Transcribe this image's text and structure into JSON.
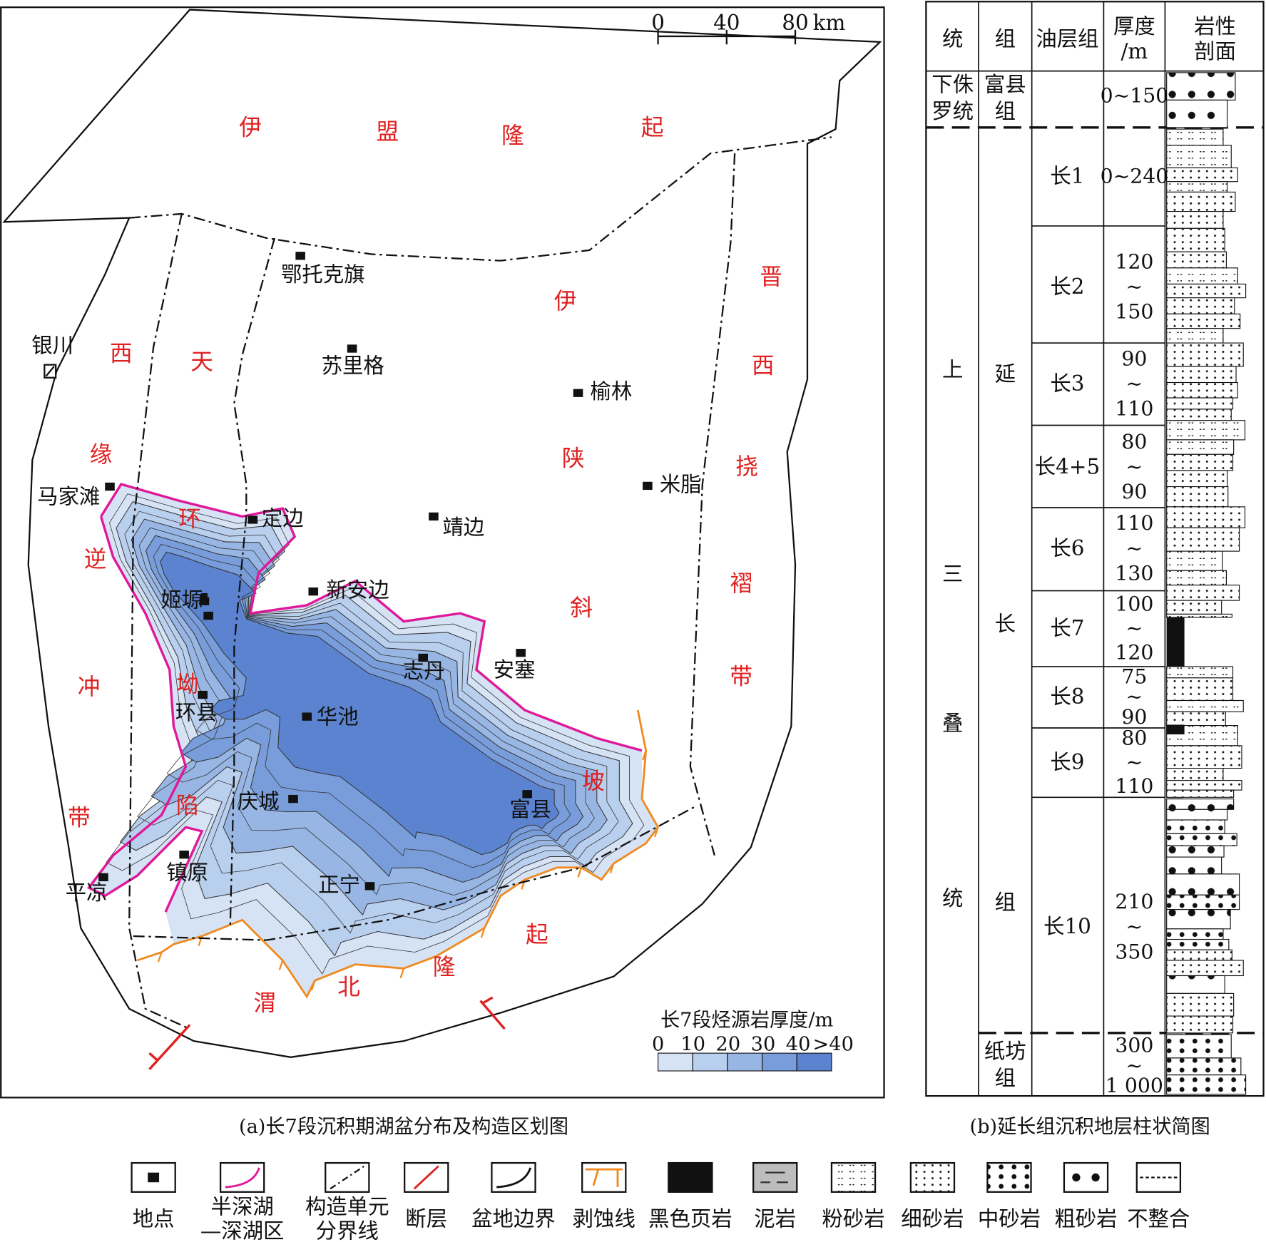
{
  "map": {
    "caption": "(a)长7段沉积期湖盆分布及构造区划图",
    "scale": {
      "labels": [
        "0",
        "40",
        "80"
      ],
      "unit": "km"
    },
    "regions": [
      {
        "chars": [
          "伊",
          "盟",
          "隆",
          "起"
        ]
      },
      {
        "chars": [
          "西",
          "缘",
          "逆",
          "冲",
          "带"
        ]
      },
      {
        "chars": [
          "天",
          "环",
          "坳",
          "陷"
        ]
      },
      {
        "chars": [
          "伊",
          "陕",
          "斜",
          "坡"
        ]
      },
      {
        "chars": [
          "晋",
          "西",
          "挠",
          "褶",
          "带"
        ]
      },
      {
        "chars": [
          "渭",
          "北",
          "隆",
          "起"
        ]
      }
    ],
    "places": [
      {
        "name": "银川"
      },
      {
        "name": "鄂托克旗"
      },
      {
        "name": "苏里格"
      },
      {
        "name": "榆林"
      },
      {
        "name": "米脂"
      },
      {
        "name": "马家滩"
      },
      {
        "name": "定边"
      },
      {
        "name": "靖边"
      },
      {
        "name": "新安边"
      },
      {
        "name": "姬塬"
      },
      {
        "name": "安塞"
      },
      {
        "name": "志丹"
      },
      {
        "name": "环县"
      },
      {
        "name": "华池"
      },
      {
        "name": "庆城"
      },
      {
        "name": "富县"
      },
      {
        "name": "镇原"
      },
      {
        "name": "平凉"
      },
      {
        "name": "正宁"
      }
    ],
    "thickness_legend": {
      "title": "长7段烃源岩厚度/m",
      "ticks": [
        "0",
        "10",
        "20",
        "30",
        "40",
        ">40"
      ]
    }
  },
  "column": {
    "caption": "(b)延长组沉积地层柱状简图",
    "headers": [
      [
        "统"
      ],
      [
        "组"
      ],
      [
        "油层组"
      ],
      [
        "厚度",
        "/m"
      ],
      [
        "岩性",
        "剖面"
      ]
    ],
    "series": [
      {
        "name": [
          "下侏",
          "罗统"
        ]
      },
      {
        "name": [
          "上",
          "三",
          "叠",
          "统"
        ]
      }
    ],
    "formations": [
      {
        "name": [
          "富县",
          "组"
        ]
      },
      {
        "name": [
          "延",
          "长",
          "组"
        ]
      },
      {
        "name": [
          "纸坊",
          "组"
        ]
      }
    ],
    "layers": [
      {
        "name": "",
        "thickness": [
          "0~150"
        ]
      },
      {
        "name": "长1",
        "thickness": [
          "0~240"
        ]
      },
      {
        "name": "长2",
        "thickness": [
          "120",
          "~",
          "150"
        ]
      },
      {
        "name": "长3",
        "thickness": [
          "90",
          "~",
          "110"
        ]
      },
      {
        "name": "长4+5",
        "thickness": [
          "80",
          "~",
          "90"
        ]
      },
      {
        "name": "长6",
        "thickness": [
          "110",
          "~",
          "130"
        ]
      },
      {
        "name": "长7",
        "thickness": [
          "100",
          "~",
          "120"
        ]
      },
      {
        "name": "长8",
        "thickness": [
          "75",
          "~",
          "90"
        ]
      },
      {
        "name": "长9",
        "thickness": [
          "80",
          "~",
          "110"
        ]
      },
      {
        "name": "长10",
        "thickness": [
          "210",
          "~",
          "350"
        ]
      },
      {
        "name": "",
        "thickness": [
          "300",
          "~",
          "1 000"
        ]
      }
    ]
  },
  "legend": [
    {
      "label": [
        "地点"
      ]
    },
    {
      "label": [
        "半深湖",
        "—深湖区"
      ]
    },
    {
      "label": [
        "构造单元",
        "分界线"
      ]
    },
    {
      "label": [
        "断层"
      ]
    },
    {
      "label": [
        "盆地边界"
      ]
    },
    {
      "label": [
        "剥蚀线"
      ]
    },
    {
      "label": [
        "黑色页岩"
      ]
    },
    {
      "label": [
        "泥岩"
      ]
    },
    {
      "label": [
        "粉砂岩"
      ]
    },
    {
      "label": [
        "细砂岩"
      ]
    },
    {
      "label": [
        "中砂岩"
      ]
    },
    {
      "label": [
        "粗砂岩"
      ]
    },
    {
      "label": [
        "不整合"
      ]
    }
  ]
}
